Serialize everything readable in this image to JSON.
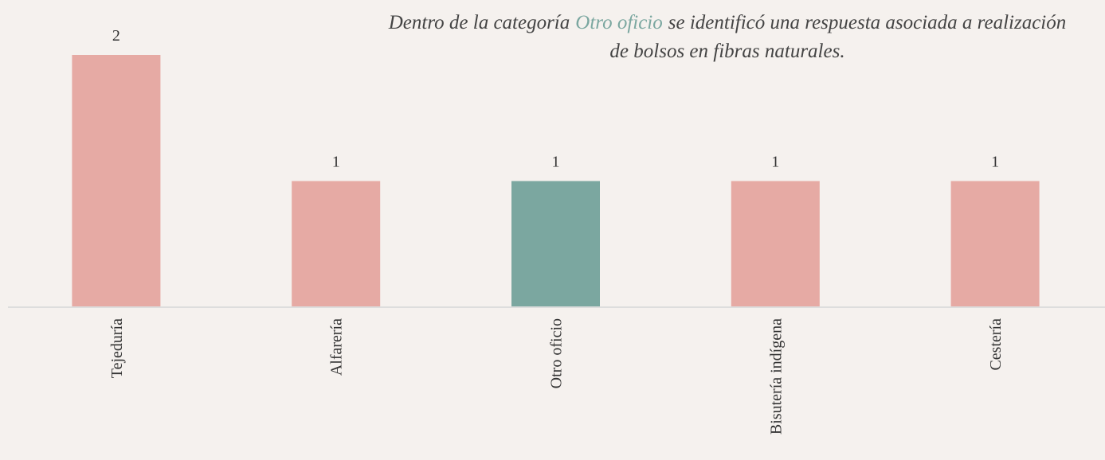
{
  "chart_data": {
    "type": "bar",
    "annotation": [
      [
        "Dentro de la categoría",
        "Otro oficio",
        "se identificó una respuesta asociada a realización"
      ],
      [
        "de bolsos en fibras naturales."
      ]
    ],
    "annotation_highlight_color": "#7ba7a0",
    "categories": [
      "Tejeduría",
      "Alfarería",
      "Otro oficio",
      "Bisutería indígena",
      "Cestería"
    ],
    "values": [
      2,
      1,
      1,
      1,
      1
    ],
    "colors": [
      "#e6aaa4",
      "#e6aaa4",
      "#7ba7a0",
      "#e6aaa4",
      "#e6aaa4"
    ],
    "ylim": [
      0,
      2
    ]
  }
}
